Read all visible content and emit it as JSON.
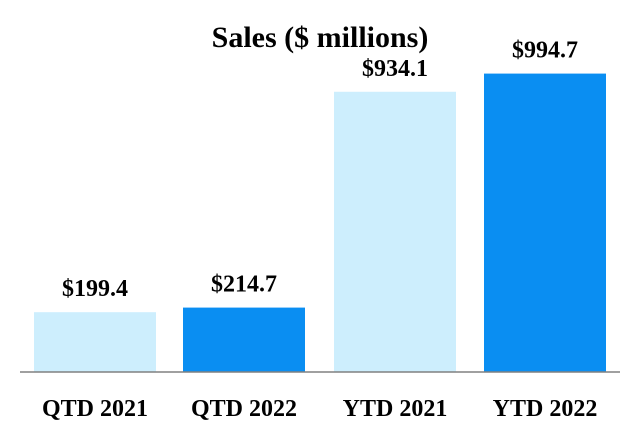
{
  "chart_data": {
    "type": "bar",
    "title": "Sales ($ millions)",
    "xlabel": "",
    "ylabel": "",
    "categories": [
      "QTD 2021",
      "QTD 2022",
      "YTD 2021",
      "YTD 2022"
    ],
    "values": [
      199.4,
      214.7,
      934.1,
      994.7
    ],
    "data_labels": [
      "$199.4",
      "$214.7",
      "$934.1",
      "$994.7"
    ],
    "bar_colors": [
      "#cdeefd",
      "#0a8ef2",
      "#cdeefd",
      "#0a8ef2"
    ],
    "axis_color": "#808080",
    "ylim": [
      0,
      1000
    ],
    "grid": false,
    "legend": "none"
  }
}
